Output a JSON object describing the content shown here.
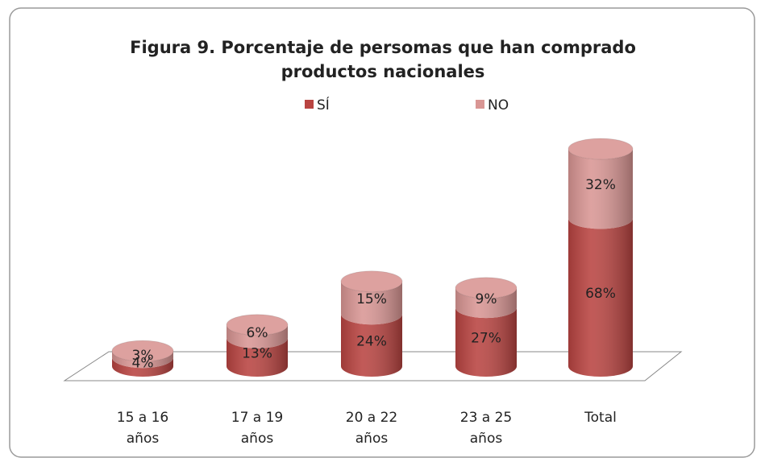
{
  "chart_data": {
    "type": "stacked-cylinder",
    "title": "Figura 9.  Porcentaje de persomas que han comprado productos nacionales",
    "categories": [
      "15 a 16 años",
      "17 a 19 años",
      "20 a 22 años",
      "23 a 25 años",
      "Total"
    ],
    "series": [
      {
        "name": "SÍ",
        "color": "#b94441",
        "values": [
          4,
          13,
          24,
          27,
          68
        ],
        "value_labels": [
          "4%",
          "13%",
          "24%",
          "27%",
          "68%"
        ]
      },
      {
        "name": "NO",
        "color": "#d99694",
        "values": [
          3,
          6,
          15,
          9,
          32
        ],
        "value_labels": [
          "3%",
          "6%",
          "15%",
          "9%",
          "32%"
        ]
      }
    ],
    "legend": "top"
  }
}
